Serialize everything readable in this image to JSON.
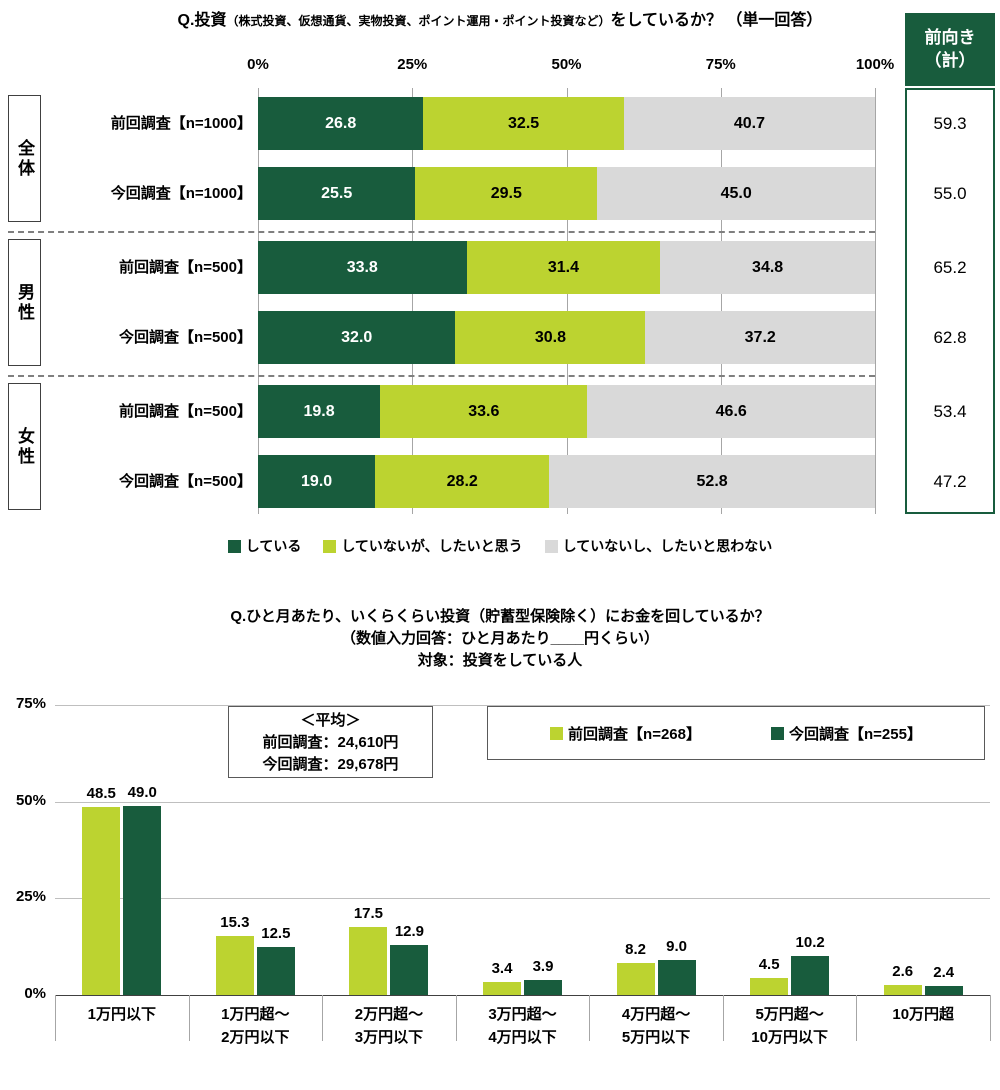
{
  "colors": {
    "dark_green": "#185C3D",
    "light_green": "#BCD330",
    "gray": "#D9D9D9",
    "grid": "#A6A6A6",
    "axis": "#404040"
  },
  "chart_data": [
    {
      "type": "stacked-bar-horizontal",
      "title_parts": {
        "lead": "Q.投資",
        "paren_small": "（株式投資、仮想通貨、実物投資、ポイント運用・ポイント投資など）",
        "tail": "をしているか？ （単一回答）"
      },
      "x_ticks": [
        "0%",
        "25%",
        "50%",
        "75%",
        "100%"
      ],
      "xlim": [
        0,
        100
      ],
      "right_column_header_lines": [
        "前向き",
        "（計）"
      ],
      "series_labels": [
        "している",
        "していないが、したいと思う",
        "していないし、したいと思わない"
      ],
      "series_colors": [
        "#185C3D",
        "#BCD330",
        "#D9D9D9"
      ],
      "value_text_colors": [
        "#FFFFFF",
        "#000000",
        "#000000"
      ],
      "legend_position": "bottom",
      "groups": [
        {
          "label": "全体",
          "rows": [
            {
              "label": "前回調査【n=1000】",
              "values": [
                26.8,
                32.5,
                40.7
              ],
              "forward_total": 59.3
            },
            {
              "label": "今回調査【n=1000】",
              "values": [
                25.5,
                29.5,
                45.0
              ],
              "forward_total": 55.0
            }
          ]
        },
        {
          "label": "男性",
          "rows": [
            {
              "label": "前回調査【n=500】",
              "values": [
                33.8,
                31.4,
                34.8
              ],
              "forward_total": 65.2
            },
            {
              "label": "今回調査【n=500】",
              "values": [
                32.0,
                30.8,
                37.2
              ],
              "forward_total": 62.8
            }
          ]
        },
        {
          "label": "女性",
          "rows": [
            {
              "label": "前回調査【n=500】",
              "values": [
                19.8,
                33.6,
                46.6
              ],
              "forward_total": 53.4
            },
            {
              "label": "今回調査【n=500】",
              "values": [
                19.0,
                28.2,
                52.8
              ],
              "forward_total": 47.2
            }
          ]
        }
      ]
    },
    {
      "type": "grouped-bar-vertical",
      "title_lines": [
        "Q.ひと月あたり、いくらくらい投資（貯蓄型保険除く）にお金を回しているか？",
        "（数値入力回答：ひと月あたり____円くらい）",
        "対象：投資をしている人"
      ],
      "y_ticks": [
        "0%",
        "25%",
        "50%",
        "75%"
      ],
      "ylim": [
        0,
        75
      ],
      "grid": true,
      "legend_position": "top-right",
      "categories": [
        "1万円以下",
        "1万円超〜\n2万円以下",
        "2万円超〜\n3万円以下",
        "3万円超〜\n4万円以下",
        "4万円超〜\n5万円以下",
        "5万円超〜\n10万円以下",
        "10万円超"
      ],
      "series": [
        {
          "name": "前回調査【n=268】",
          "color": "#BCD330",
          "values": [
            48.5,
            15.3,
            17.5,
            3.4,
            8.2,
            4.5,
            2.6
          ]
        },
        {
          "name": "今回調査【n=255】",
          "color": "#185C3D",
          "values": [
            49.0,
            12.5,
            12.9,
            3.9,
            9.0,
            10.2,
            2.4
          ]
        }
      ],
      "average_box": {
        "title": "＜平均＞",
        "lines": [
          "前回調査：24,610円",
          "今回調査：29,678円"
        ]
      }
    }
  ]
}
